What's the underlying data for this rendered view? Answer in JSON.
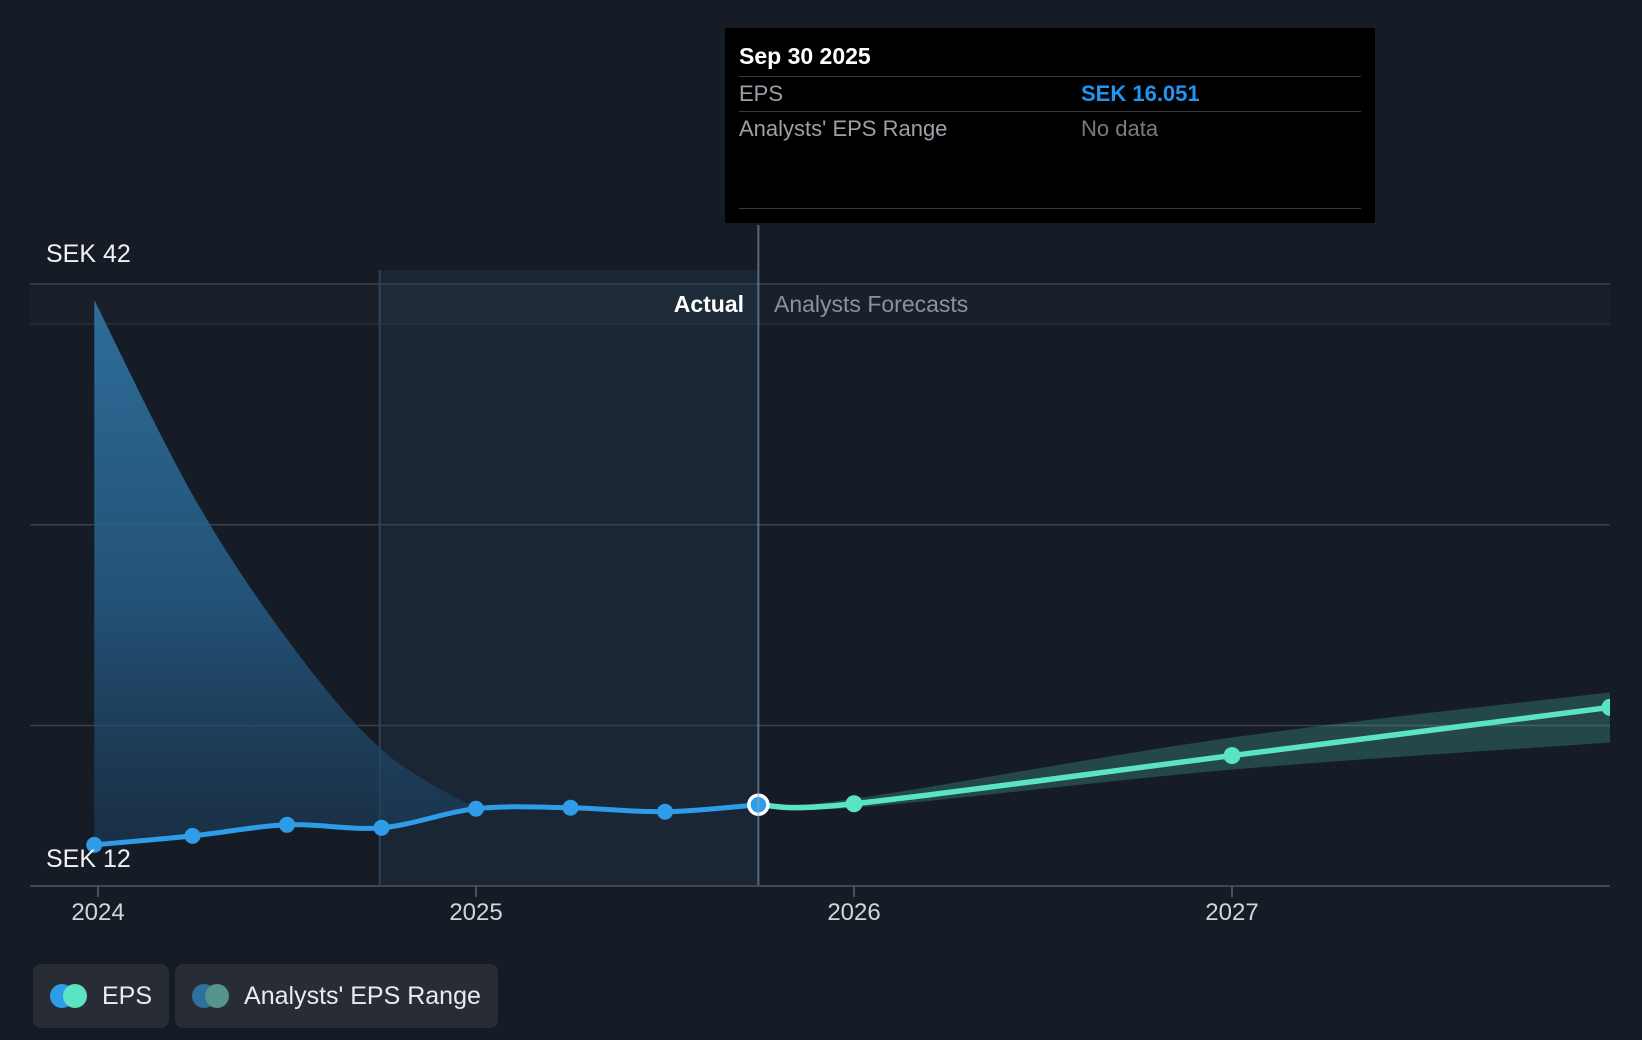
{
  "colors": {
    "background": "#161c25",
    "eps_line": "#2f9ce8",
    "forecast_line": "#5ae4c3",
    "forecast_band": "rgba(88,227,194,0.22)",
    "tooltip_value_blue": "#2095f2",
    "gridline": "#3a414b",
    "axis_line": "#414853",
    "divider_line": "rgba(130,170,205,0.55)",
    "highlight_fill": "rgba(70,140,210,0.09)",
    "past_range_top": "#2e729f",
    "past_range_bottom": "#1b3c59"
  },
  "tooltip": {
    "date": "Sep 30 2025",
    "rows": [
      {
        "label": "EPS",
        "value": "SEK 16.051"
      },
      {
        "label": "Analysts' EPS Range",
        "value": "No data"
      }
    ]
  },
  "sections": {
    "actual_label": "Actual",
    "forecast_label": "Analysts Forecasts"
  },
  "y_axis": {
    "max_label": "SEK 42",
    "min_label": "SEK 12"
  },
  "legend": {
    "items": [
      {
        "label": "EPS",
        "colors": [
          "#2f9ce8",
          "#5ae4c3"
        ]
      },
      {
        "label": "Analysts' EPS Range",
        "colors": [
          "#2d6f9f",
          "#55948a"
        ]
      }
    ]
  },
  "chart_data": {
    "type": "line",
    "title": "EPS — actual vs analysts forecasts",
    "unit": "SEK",
    "xlim": [
      2023.82,
      2028.0
    ],
    "ylim": [
      12,
      42
    ],
    "gridline_values": [
      42,
      30,
      20
    ],
    "x_ticks": [
      {
        "t": 2024,
        "label": "2024"
      },
      {
        "t": 2025,
        "label": "2025"
      },
      {
        "t": 2026,
        "label": "2026"
      },
      {
        "t": 2027,
        "label": "2027"
      }
    ],
    "actual_series": {
      "name": "EPS",
      "points": [
        {
          "t": 2023.99,
          "v": 14.05
        },
        {
          "t": 2024.25,
          "v": 14.5
        },
        {
          "t": 2024.5,
          "v": 15.05
        },
        {
          "t": 2024.75,
          "v": 14.9
        },
        {
          "t": 2025.0,
          "v": 15.85
        },
        {
          "t": 2025.25,
          "v": 15.9
        },
        {
          "t": 2025.5,
          "v": 15.7
        },
        {
          "t": 2025.747,
          "v": 16.051
        }
      ]
    },
    "forecast_series": {
      "name": "Analysts forecast EPS",
      "points": [
        {
          "t": 2025.747,
          "v": 16.051
        },
        {
          "t": 2026.0,
          "v": 16.1
        },
        {
          "t": 2027.0,
          "v": 18.5
        },
        {
          "t": 2028.0,
          "v": 20.9
        }
      ]
    },
    "past_range": [
      {
        "t": 2023.99,
        "lo": 14.05,
        "hi": 41.2
      },
      {
        "t": 2024.25,
        "lo": 14.5,
        "hi": 31.5
      },
      {
        "t": 2024.5,
        "lo": 15.05,
        "hi": 24.3
      },
      {
        "t": 2024.75,
        "lo": 14.9,
        "hi": 18.8
      },
      {
        "t": 2025.0,
        "lo": 15.85,
        "hi": 15.85
      }
    ],
    "forecast_range": [
      {
        "t": 2025.747,
        "lo": 16.051,
        "hi": 16.051
      },
      {
        "t": 2026.0,
        "lo": 15.9,
        "hi": 16.35
      },
      {
        "t": 2027.0,
        "lo": 17.8,
        "hi": 19.4
      },
      {
        "t": 2028.0,
        "lo": 19.15,
        "hi": 21.65
      }
    ],
    "current_point": {
      "t": 2025.747,
      "v": 16.051,
      "date": "Sep 30 2025"
    },
    "highlight_span": [
      2024.745,
      2025.747
    ],
    "divider_t": 2025.747
  }
}
